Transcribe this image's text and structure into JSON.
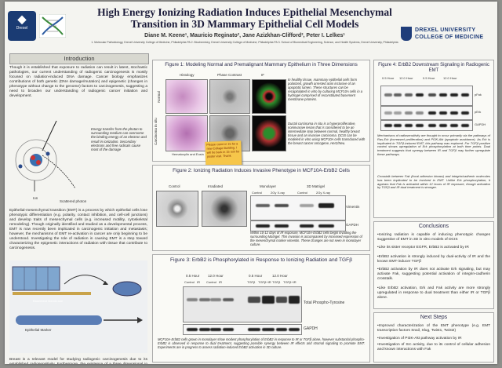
{
  "title_line1": "High Energy Ionizing Radiation Induces Epithelial Mesenchymal",
  "title_line2": "Transition in 3D Mammary Epithelial Cell Models",
  "authors": "Diane M. Keene¹, Mauricio Reginato², Jane Azizkhan-Clifford², Peter I. Lelkes¹",
  "affiliations": "1. Molecular Pathobiology, Drexel University College of Medicine, Philadelphia PA   2. Biochemistry, Drexel University College of Medicine, Philadelphia PA   3. School of Biomedical Engineering, Science, and Health Systems, Drexel University, Philadelphia",
  "logo_left": "Drexel",
  "logo_right": {
    "line1": "DREXEL UNIVERSITY",
    "line2": "COLLEGE OF MEDICINE"
  },
  "introduction": {
    "heading": "Introduction",
    "p1": "Though it is established that exposure to radiation can result in latent, stochastic pathologies, our current understanding of radiogenic carcinogenesis is mostly focused on radiation-induced DNA damage. Cancer biology emphasizes contributions of both genetic (DNA damage/mutation) and epigenetic (changes in phenotype without change to the genome) factors to carcinogenesis, suggesting a need to broaden our understanding of radiogenic cancer initiation and development.",
    "figure_caption": "Energy transfer from the photon to surrounding medium can overcome the binding energy of an electron and result in ionization. Secondary electrons and free radicals cause most of the damage",
    "ion_label": "Ion",
    "photon_label": "Scattered photon",
    "p2": "Epithelial-mesenchymal transition (EMT) is a process by which epithelial cells lose phenotypic differentiation (e.g. polarity, contact inhibition, and cell-cell junctions) and develop traits of mesenchymal cells (e.g. increased motility, cytoskeletal remodeling). Though originally identified and studied as a developmental process, EMT is now recently been implicated in carcinogenic initiation and metastasis; however, the mechanisms of EMT re-activation in cancer are only beginning to be understood. Investigating the role of radiation in causing EMT is a step toward characterizing the epigenetic interactions of radiation with tissue that contribute to carcinogenesis.",
    "emt_labels": {
      "basement": "Basement Membrane",
      "epithelial": "Epithelial Marker"
    },
    "p3": "Breast is a relevant model for studying radiogenic carcinogenesis due to its established radiosensitivity. Furthermore, the existence of a three dimensional in vitro model system recapitulating normal, premalignant, and malignant mammary epithelial structures provides physiological relevance beyond that of monolayer cell culture."
  },
  "fig1": {
    "title": "Figure 1: Modeling Normal and Premalignant Mammary Epithelium in Three Dimensions",
    "col_labels": [
      "Histology",
      "Phase Contrast",
      "IF"
    ],
    "row_labels": [
      "Normal",
      "Carcinoma in situ"
    ],
    "footer_label": "Hematoxylin and Eosin",
    "text1": "In healthy tissue, mammary epithelial cells form polarized, growth arrested acini inclusive of an apoptotic lumen. These structures can be recapitulated in vitro by culturing MCF10A cells in a hydrogel comprised of reconstituted basement membrane proteins.",
    "text2": "Ductal carcinoma in situ is a hyperproliferative, noninvasive lesion that is considered to be an intermediate step between normal, healthy breast tissue and an invasive carcinoma. DCIS can be modeled in vitro using MCF10A cells transduced with the breast cancer oncogene, Her2/Neu."
  },
  "sticky_note": "Please come in 15 for a new Collage Building. I will be back in 15 min for poster visit. Thank",
  "fig2": {
    "title": "Figure 2: Ionizing Radiation Induces Invasive Phenotype in MCF10A-ErbB2 Cells",
    "labels": [
      "Control",
      "Irradiated"
    ],
    "blot_headers": [
      "Monolayer",
      "3D Matrigel"
    ],
    "lanes": [
      "Control",
      "2Gy X-ray",
      "Control",
      "2Gy X-ray"
    ],
    "bands": [
      "Vimentin",
      "GAPDH"
    ],
    "caption": "Within 10-12 days of IR exposure, MCF10A-ErbB2 cells begin invading the surrounding Matrigel. This invasion is accompanied by increased expression of the mesenchymal marker vimentin. These changes are not seen in monolayer culture."
  },
  "fig3": {
    "title": "Figure 3: ErbB2 is Phosphorylated in Response to Ionizing Radiation and TGFβ",
    "timepoints": [
      "0.5 Hour",
      "12.0 Hour",
      "0.5 Hour",
      "12.0 Hour"
    ],
    "lanes": [
      "Control",
      "IR",
      "Control",
      "IR",
      "TGFβ",
      "TGFβ+IR",
      "TGFβ",
      "TGFβ+IR"
    ],
    "bands": [
      "Total Phospho-Tyrosine",
      "GAPDH"
    ],
    "caption": "MCF10A-ErbB2 cells grown in monolayer show modest phosphorylation of ErbB2 in response to IR or TGFβ alone, however substantial phospho-ErbB2 is observed in response to dual treatment, suggesting possible synergy between IR effects and stromal signaling to promote EMT. Experiments are in progress to assess radiation-induced ErbB2 activation in 3D culture."
  },
  "fig4": {
    "title": "Figure 4: ErbB2 Downstream Signaling in Radiogenic EMT",
    "timepoints": [
      "0.5 Hour",
      "12.0 Hour",
      "0.5 Hour",
      "12.0 Hour"
    ],
    "bands": [
      "pFak",
      "pErk",
      "GAPDH"
    ],
    "text1": "Mechanisms of radiosensitivity are thought to occur primarily via the pathways of Ras-Erk (increased proliferation) and PI3K-Akt (apoptotic avoidance). As Erk is implicated in TGFβ-induced EMT, this pathway was explored. For TGFβ positive control shows upregulation of Erk phosphorylation at both time points. Dual treatment suggests that synergy between IR and TGFβ may further upregulate these pathways.",
    "text2": "Crosstalk between Fak (focal adhesion kinase) and integrin/cadherin molecules has been implicated to be involved in EMT. Unlike Erk phosphorylation, it appears that Fak is activated within 12 hours of IR exposure, though activation by TGFβ and IR dual treatment is stronger."
  },
  "conclusions": {
    "heading": "Conclusions",
    "items": [
      "•Ionizing radiation is capable of inducing phenotypic changes suggestive of EMT in 3D in vitro models of DCIS",
      "•Like its sister receptor EGFR, ErbB2 is activated by IR",
      "•ErbB2 activation is strongly induced by dual-activity of IR and the known EMT-inducer TGFβ",
      "•ErbB2 activation by IR does not activate Erk signaling, but may activate Fak, suggesting potential activation of integrin-cadherin crosstalk.",
      "•Like ErbB2 activation, Erk and Fak activity are more strongly upregulated in response to dual treatment than either IR or TGFβ alone."
    ]
  },
  "next_steps": {
    "heading": "Next Steps",
    "items": [
      "•Improved characterization of the EMT phenotype (e.g. EMT transcription factors Snail, Slug, Twist1, Twist2)",
      "•Investigation of PI3K-Akt pathway activation by IR",
      "•Investigation of Src activity, due to its control of cellular adhesion and known interactions with Fak"
    ]
  },
  "colors": {
    "title": "#1b1b3a",
    "panel_border": "#aaaaaa",
    "sticky": "#f6c64a",
    "drexel_blue": "#1f3d7a"
  }
}
